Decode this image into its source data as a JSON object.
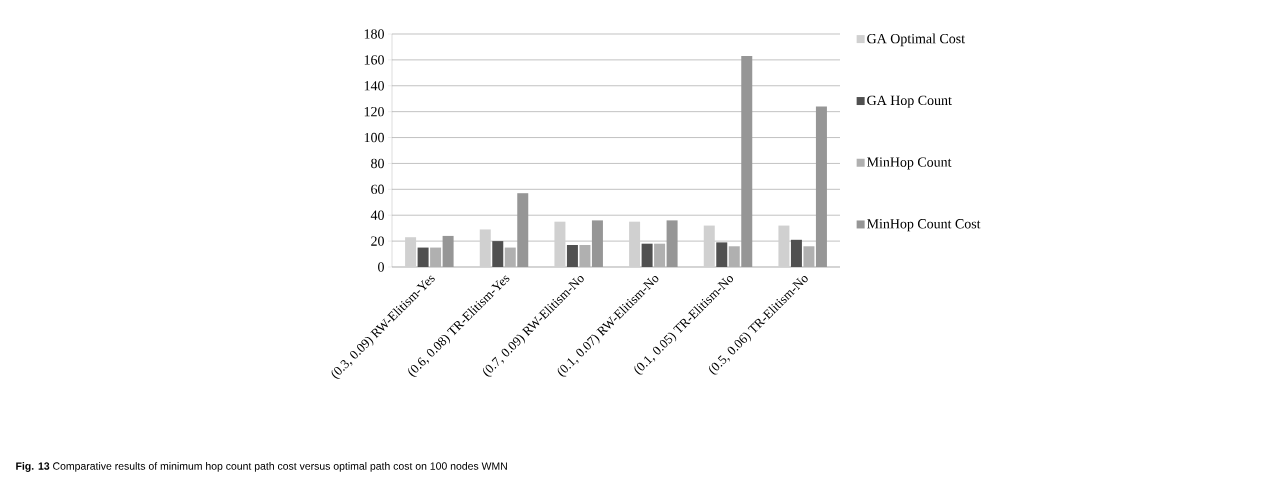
{
  "chart_data": {
    "type": "bar",
    "categories": [
      "(0.3, 0.09) RW-Elitism-Yes",
      "(0.6, 0.08) TR-Elitism-Yes",
      "(0.7, 0.09) RW-Elitism-No",
      "(0.1, 0.07) RW-Elitism-No",
      "(0.1, 0.05) TR-Elitism-No",
      "(0.5, 0.06) TR-Elitism-No"
    ],
    "series": [
      {
        "name": "GA Optimal Cost",
        "color": "#d0d0d0",
        "values": [
          23,
          29,
          35,
          35,
          32,
          32
        ]
      },
      {
        "name": "GA Hop Count",
        "color": "#505050",
        "values": [
          15,
          20,
          17,
          18,
          19,
          21
        ]
      },
      {
        "name": "MinHop Count",
        "color": "#b0b0b0",
        "values": [
          15,
          15,
          17,
          18,
          16,
          16
        ]
      },
      {
        "name": "MinHop Count Cost",
        "color": "#969696",
        "values": [
          24,
          57,
          36,
          36,
          163,
          124
        ]
      }
    ],
    "ylim": [
      0,
      180
    ],
    "yticks": [
      0,
      20,
      40,
      60,
      80,
      100,
      120,
      140,
      160,
      180
    ],
    "grid": "y",
    "legend": "right",
    "annotations": [
      "**Fig. 13** Comparative results of minimum hop count path cost versus optimal path cost on 100 nodes WMN"
    ]
  }
}
